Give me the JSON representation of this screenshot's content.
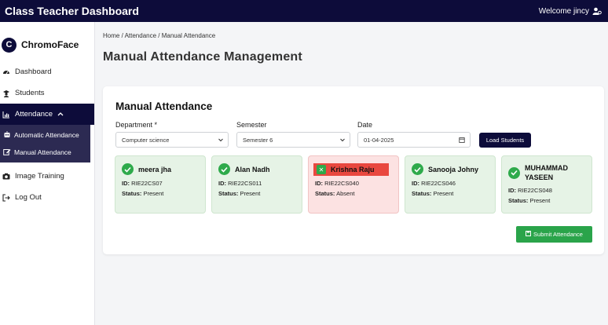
{
  "topbar": {
    "title": "Class Teacher Dashboard",
    "welcome": "Welcome jincy"
  },
  "sidebar": {
    "brand": "ChromoFace",
    "brand_logo_letter": "C",
    "items": [
      {
        "label": "Dashboard",
        "icon": "dashboard-icon"
      },
      {
        "label": "Students",
        "icon": "student-icon"
      },
      {
        "label": "Attendance",
        "icon": "chart-icon",
        "expanded": true
      },
      {
        "label": "Image Training",
        "icon": "camera-icon"
      },
      {
        "label": "Log Out",
        "icon": "logout-icon"
      }
    ],
    "submenu": [
      {
        "label": "Automatic Attendance",
        "icon": "robot-icon"
      },
      {
        "label": "Manual Attendance",
        "icon": "edit-icon"
      }
    ]
  },
  "breadcrumb": "Home / Attendance / Manual Attendance",
  "page_title": "Manual Attendance Management",
  "form": {
    "title": "Manual Attendance",
    "department_label": "Department *",
    "department_value": "Computer science",
    "semester_label": "Semester",
    "semester_value": "Semester 6",
    "date_label": "Date",
    "date_value": "01-04-2025",
    "load_button": "Load Students",
    "submit_button": "Submit Attendance"
  },
  "students": [
    {
      "name": "meera jha",
      "id": "RIE22CS07",
      "status": "Present"
    },
    {
      "name": "Alan Nadh",
      "id": "RIE22CS011",
      "status": "Present"
    },
    {
      "name": "Krishna Raju",
      "id": "RIE22CS040",
      "status": "Absent"
    },
    {
      "name": "Sanooja Johny",
      "id": "RIE22CS046",
      "status": "Present"
    },
    {
      "name": "MUHAMMAD YASEEN",
      "id": "RIE22CS048",
      "status": "Present"
    }
  ],
  "labels": {
    "id_prefix": "ID:",
    "status_prefix": "Status:"
  },
  "colors": {
    "navy": "#0d0c3a",
    "present_bg": "#e6f3e6",
    "absent_bg": "#fce2e2",
    "green": "#2aa44a",
    "red": "#e9483f"
  }
}
